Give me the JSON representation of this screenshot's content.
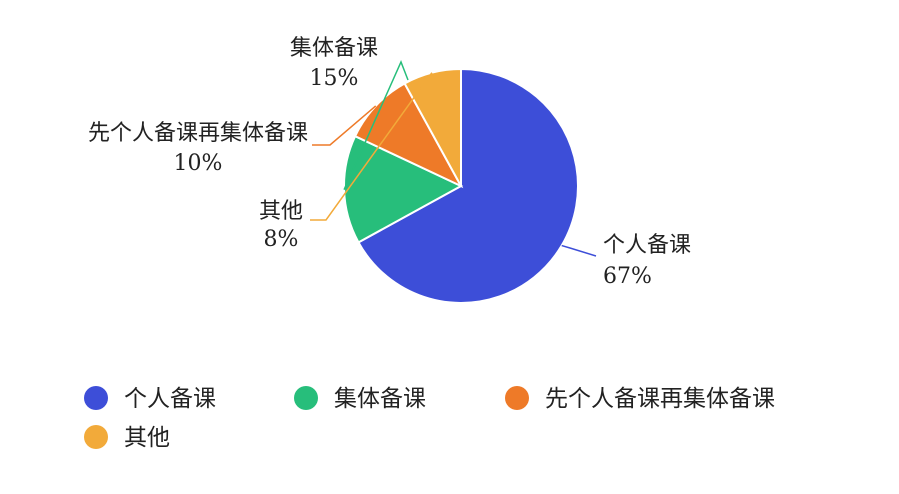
{
  "chart_data": {
    "type": "pie",
    "categories": [
      "个人备课",
      "集体备课",
      "先个人备课再集体备课",
      "其他"
    ],
    "values": [
      67,
      15,
      10,
      8
    ],
    "value_labels": [
      "67%",
      "15%",
      "10%",
      "8%"
    ],
    "colors": [
      "#3D4ED8",
      "#27BE7B",
      "#EE7A28",
      "#F2AA3A"
    ],
    "legend_position": "bottom",
    "start_angle_deg": 0,
    "direction": "clockwise"
  }
}
